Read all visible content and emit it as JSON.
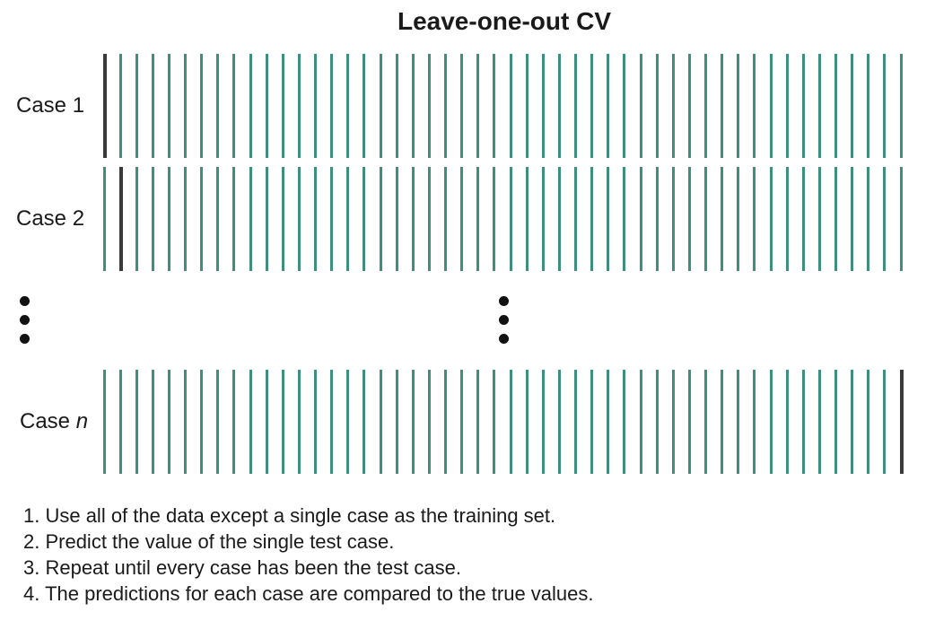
{
  "title": "Leave-one-out CV",
  "colors": {
    "train": "#3f8f7f",
    "test": "#3a3a3a"
  },
  "bars_per_row": 50,
  "rows": [
    {
      "label": "Case 1",
      "label_italic": "",
      "test_index": 0
    },
    {
      "label": "Case ",
      "label_italic": "2",
      "test_index": 1
    },
    {
      "label": "Case ",
      "label_italic": "n",
      "test_index": 49
    }
  ],
  "steps": [
    "1. Use all of the data except a single case as the training set.",
    "2. Predict the value of the single test case.",
    "3. Repeat until every case has been the test case.",
    "4. The predictions for each case are compared to the true values."
  ]
}
